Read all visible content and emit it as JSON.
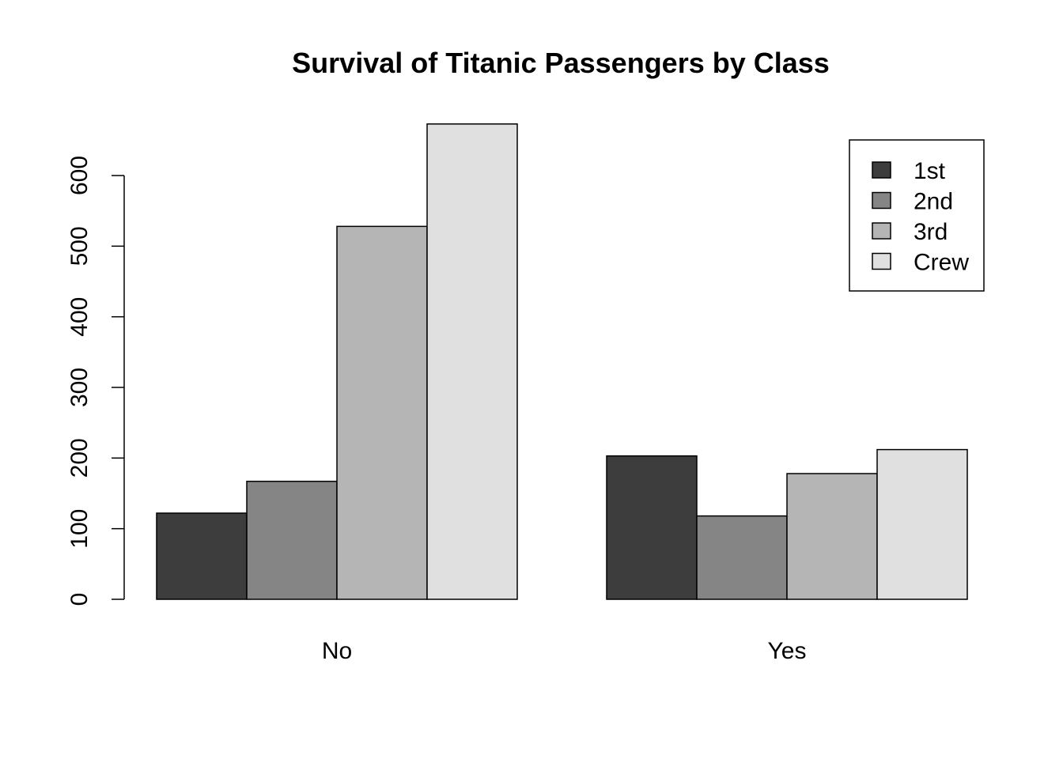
{
  "chart_data": {
    "type": "bar",
    "title": "Survival of Titanic Passengers by Class",
    "xlabel": "",
    "ylabel": "",
    "categories": [
      "No",
      "Yes"
    ],
    "series": [
      {
        "name": "1st",
        "values": [
          122,
          203
        ],
        "color": "#3d3d3d"
      },
      {
        "name": "2nd",
        "values": [
          167,
          118
        ],
        "color": "#858585"
      },
      {
        "name": "3rd",
        "values": [
          528,
          178
        ],
        "color": "#b5b5b5"
      },
      {
        "name": "Crew",
        "values": [
          673,
          212
        ],
        "color": "#e0e0e0"
      }
    ],
    "y_ticks": [
      "0",
      "100",
      "200",
      "300",
      "400",
      "500",
      "600"
    ],
    "ylim": [
      0,
      673
    ],
    "grid": false,
    "legend_position": "top-right",
    "layout": "grouped"
  }
}
